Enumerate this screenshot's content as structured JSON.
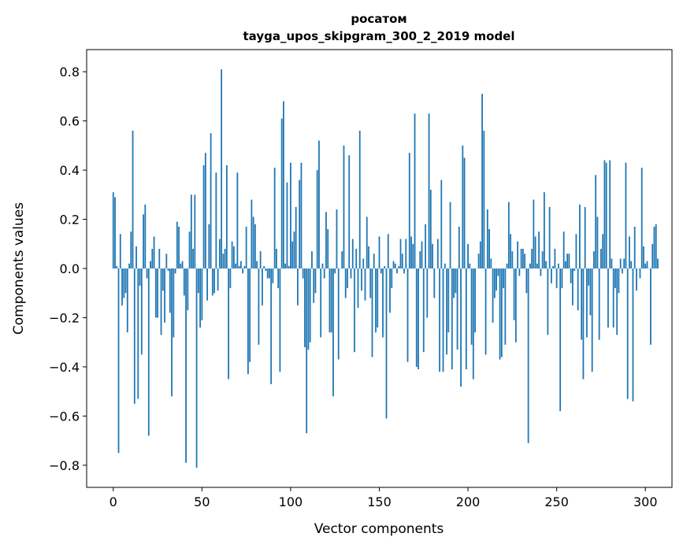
{
  "chart_data": {
    "type": "bar",
    "title": "росатом",
    "subtitle": "tayga_upos_skipgram_300_2_2019 model",
    "xlabel": "Vector components",
    "ylabel": "Components values",
    "xlim": [
      -15,
      315
    ],
    "ylim": [
      -0.89,
      0.89
    ],
    "xticks": [
      0,
      50,
      100,
      150,
      200,
      250,
      300
    ],
    "xtick_labels": [
      "0",
      "50",
      "100",
      "150",
      "200",
      "250",
      "300"
    ],
    "yticks": [
      -0.8,
      -0.6,
      -0.4,
      -0.2,
      0.0,
      0.2,
      0.4,
      0.6,
      0.8
    ],
    "ytick_labels": [
      "−0.8",
      "−0.6",
      "−0.4",
      "−0.2",
      "0.0",
      "0.2",
      "0.4",
      "0.6",
      "0.8"
    ],
    "grid": false,
    "bar_color": "#1f77b4",
    "values": [
      0.31,
      0.29,
      0.01,
      -0.75,
      0.14,
      -0.15,
      -0.12,
      -0.1,
      -0.26,
      0.02,
      0.15,
      0.56,
      -0.55,
      0.09,
      -0.53,
      -0.07,
      -0.35,
      0.22,
      0.26,
      -0.04,
      -0.68,
      0.03,
      0.08,
      0.13,
      -0.2,
      -0.2,
      0.08,
      -0.27,
      -0.09,
      -0.22,
      0.06,
      -0.01,
      -0.18,
      -0.52,
      -0.28,
      -0.02,
      0.19,
      0.17,
      0.02,
      0.03,
      -0.11,
      -0.79,
      -0.17,
      0.15,
      0.3,
      0.08,
      0.3,
      -0.81,
      -0.1,
      -0.24,
      -0.21,
      0.42,
      0.47,
      -0.13,
      0.18,
      0.55,
      -0.11,
      -0.1,
      0.39,
      -0.09,
      0.12,
      0.81,
      0.06,
      0.08,
      0.42,
      -0.45,
      -0.08,
      0.11,
      0.09,
      0.02,
      0.39,
      0.01,
      0.03,
      -0.02,
      0.01,
      0.17,
      -0.43,
      -0.38,
      0.28,
      0.21,
      0.18,
      0.03,
      -0.31,
      0.07,
      -0.15,
      0.01,
      -0.01,
      -0.04,
      -0.04,
      -0.47,
      -0.06,
      0.41,
      0.08,
      -0.08,
      -0.42,
      0.61,
      0.68,
      0.02,
      0.35,
      0.01,
      0.43,
      0.11,
      0.15,
      0.25,
      -0.15,
      0.36,
      0.43,
      -0.04,
      -0.32,
      -0.67,
      -0.33,
      -0.3,
      0.07,
      -0.14,
      -0.1,
      0.4,
      0.52,
      -0.28,
      0.02,
      -0.04,
      0.23,
      0.16,
      -0.26,
      -0.26,
      -0.52,
      -0.02,
      0.24,
      -0.37,
      0.0,
      0.07,
      0.5,
      -0.12,
      -0.08,
      0.46,
      -0.04,
      0.12,
      -0.34,
      0.08,
      -0.16,
      0.56,
      -0.09,
      0.04,
      -0.13,
      0.21,
      0.09,
      -0.12,
      -0.36,
      0.06,
      -0.26,
      -0.24,
      0.13,
      -0.02,
      -0.28,
      0.01,
      -0.61,
      0.14,
      -0.18,
      -0.08,
      0.03,
      0.02,
      -0.02,
      0.01,
      0.12,
      0.06,
      -0.02,
      0.12,
      -0.38,
      0.47,
      0.13,
      0.1,
      0.63,
      -0.4,
      -0.41,
      0.07,
      0.11,
      -0.34,
      0.18,
      -0.2,
      0.63,
      0.32,
      0.1,
      -0.12,
      0.0,
      0.12,
      -0.42,
      0.36,
      -0.42,
      0.02,
      -0.35,
      -0.26,
      0.27,
      -0.41,
      -0.12,
      -0.1,
      -0.33,
      0.17,
      -0.48,
      0.5,
      0.45,
      -0.41,
      0.1,
      0.02,
      -0.31,
      -0.45,
      -0.26,
      0.0,
      0.06,
      0.11,
      0.71,
      0.56,
      -0.35,
      0.24,
      0.16,
      0.04,
      -0.22,
      -0.12,
      -0.09,
      -0.03,
      -0.37,
      -0.36,
      -0.08,
      -0.31,
      0.02,
      0.27,
      0.14,
      0.07,
      -0.21,
      -0.3,
      0.11,
      -0.03,
      0.08,
      0.08,
      0.06,
      -0.1,
      -0.71,
      0.02,
      0.08,
      0.28,
      0.13,
      0.02,
      0.15,
      -0.03,
      0.07,
      0.31,
      0.03,
      -0.27,
      0.25,
      -0.06,
      0.01,
      0.08,
      -0.08,
      0.02,
      -0.58,
      -0.08,
      0.15,
      0.03,
      0.06,
      0.06,
      -0.06,
      -0.15,
      -0.01,
      0.14,
      -0.17,
      0.26,
      -0.29,
      -0.45,
      0.25,
      -0.28,
      -0.07,
      -0.19,
      -0.42,
      0.07,
      0.38,
      0.21,
      -0.29,
      0.08,
      0.14,
      0.44,
      0.43,
      -0.24,
      0.44,
      0.04,
      -0.24,
      -0.08,
      -0.27,
      -0.1,
      0.04,
      -0.02,
      0.04,
      0.43,
      -0.53,
      0.13,
      0.03,
      -0.54,
      0.17,
      -0.09,
      0.0,
      -0.04,
      0.41,
      0.09,
      0.02,
      0.03,
      0.0,
      -0.31,
      0.1,
      0.17,
      0.18,
      0.04
    ]
  }
}
